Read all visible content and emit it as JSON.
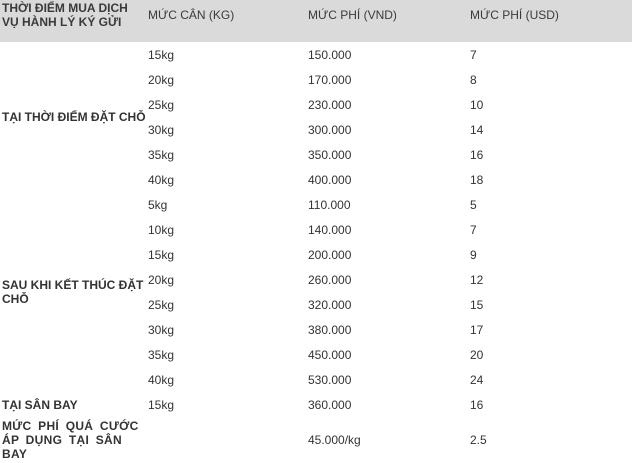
{
  "table": {
    "headers": [
      "THỜI ĐIỂM MUA DỊCH VỤ HÀNH LÝ KÝ GỬI",
      "MỨC CÂN (KG)",
      "MỨC PHÍ (VND)",
      "MỨC PHÍ (USD)"
    ],
    "groups": [
      {
        "label": "TẠI THỜI ĐIỂM ĐẶT CHỖ",
        "rows": [
          [
            "15kg",
            "150.000",
            "7"
          ],
          [
            "20kg",
            "170.000",
            "8"
          ],
          [
            "25kg",
            "230.000",
            "10"
          ],
          [
            "30kg",
            "300.000",
            "14"
          ],
          [
            "35kg",
            "350.000",
            "16"
          ],
          [
            "40kg",
            "400.000",
            "18"
          ]
        ]
      },
      {
        "label": "SAU KHI KẾT THÚC ĐẶT CHỖ",
        "rows": [
          [
            "5kg",
            "110.000",
            "5"
          ],
          [
            "10kg",
            "140.000",
            "7"
          ],
          [
            "15kg",
            "200.000",
            "9"
          ],
          [
            "20kg",
            "260.000",
            "12"
          ],
          [
            "25kg",
            "320.000",
            "15"
          ],
          [
            "30kg",
            "380.000",
            "17"
          ],
          [
            "35kg",
            "450.000",
            "20"
          ],
          [
            "40kg",
            "530.000",
            "24"
          ]
        ]
      },
      {
        "label": "TẠI SÂN BAY",
        "rows": [
          [
            "15kg",
            "360.000",
            "16"
          ]
        ]
      }
    ],
    "overweight": {
      "label": "MỨC PHÍ QUÁ CƯỚC ÁP DỤNG TẠI SÂN BAY",
      "weight": "",
      "vnd": "45.000/kg",
      "usd": "2.5"
    }
  }
}
